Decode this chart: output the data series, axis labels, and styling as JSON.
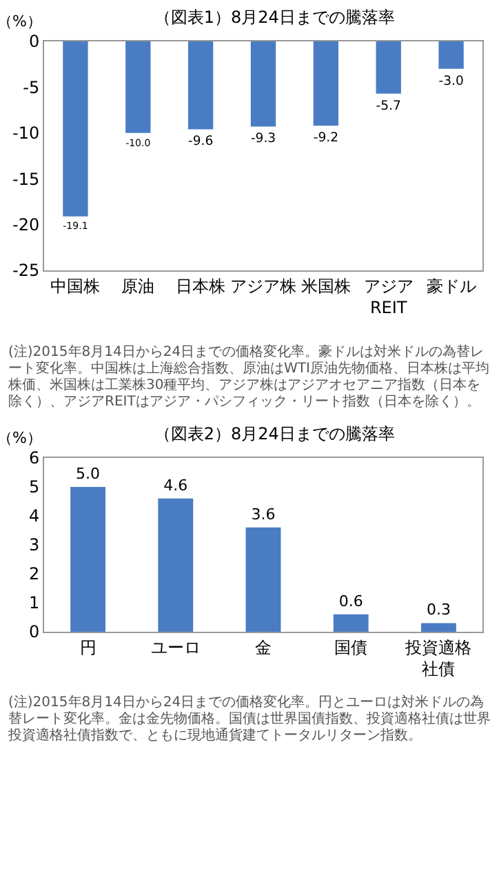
{
  "chart_data": [
    {
      "type": "bar",
      "title": "（図表1）8月24日までの騰落率",
      "ylabel": "（%）",
      "categories": [
        "中国株",
        "原油",
        "日本株",
        "アジア株",
        "米国株",
        "アジアREIT",
        "豪ドル"
      ],
      "values": [
        -19.1,
        -10.0,
        -9.6,
        -9.3,
        -9.2,
        -5.7,
        -3.0
      ],
      "value_labels": [
        "-19.1",
        "-10.0",
        "-9.6",
        "-9.3",
        "-9.2",
        "-5.7",
        "-3.0"
      ],
      "color": "#4a7cc4",
      "ylim": [
        -25,
        0
      ],
      "yticks": [
        0,
        -5,
        -10,
        -15,
        -20,
        -25
      ],
      "grid": false,
      "legend": false,
      "annotations": [
        "(注)2015年8月14日から24日までの価格変化率。豪ドルは対米ドルの為替レート変化率。中国株は上海総合指数、原油はWTI原油先物価格、日本株は平均株価、米国株は工業株30種平均、アジア株はアジアオセアニア指数（日本を除く）、アジアREITはアジア・パシフィック・リート指数（日本を除く）。"
      ]
    },
    {
      "type": "bar",
      "title": "（図表2）8月24日までの騰落率",
      "ylabel": "（%）",
      "categories": [
        "円",
        "ユーロ",
        "金",
        "国債",
        "投資適格社債"
      ],
      "values": [
        5.0,
        4.6,
        3.6,
        0.6,
        0.3
      ],
      "value_labels": [
        "5.0",
        "4.6",
        "3.6",
        "0.6",
        "0.3"
      ],
      "color": "#4a7cc4",
      "ylim": [
        0,
        6
      ],
      "yticks": [
        0,
        1,
        2,
        3,
        4,
        5,
        6
      ],
      "grid": false,
      "legend": false,
      "annotations": [
        "(注)2015年8月14日から24日までの価格変化率。円とユーロは対米ドルの為替レート変化率。金は金先物価格。国債は世界国債指数、投資適格社債は世界投資適格社債指数で、ともに現地通貨建てトータルリターン指数。"
      ]
    }
  ]
}
